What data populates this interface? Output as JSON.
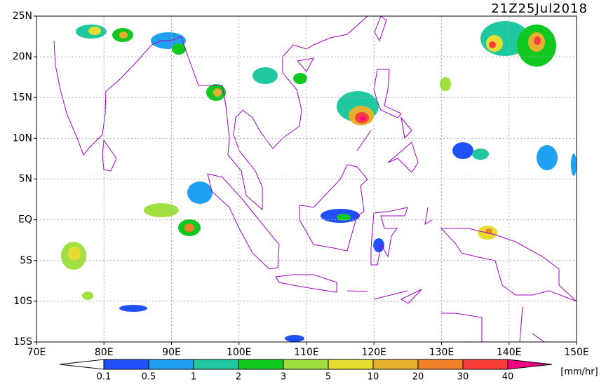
{
  "title": "21Z25Jul2018",
  "map": {
    "lonlim": [
      70,
      150
    ],
    "latlim": [
      -15,
      25
    ],
    "lonticks": [
      {
        "value": 70,
        "label": "70E"
      },
      {
        "value": 80,
        "label": "80E"
      },
      {
        "value": 90,
        "label": "90E"
      },
      {
        "value": 100,
        "label": "100E"
      },
      {
        "value": 110,
        "label": "110E"
      },
      {
        "value": 120,
        "label": "120E"
      },
      {
        "value": 130,
        "label": "130E"
      },
      {
        "value": 140,
        "label": "140E"
      },
      {
        "value": 150,
        "label": "150E"
      }
    ],
    "latticks": [
      {
        "value": 25,
        "label": "25N"
      },
      {
        "value": 20,
        "label": "20N"
      },
      {
        "value": 15,
        "label": "15N"
      },
      {
        "value": 10,
        "label": "10N"
      },
      {
        "value": 5,
        "label": "5N"
      },
      {
        "value": 0,
        "label": "EQ"
      },
      {
        "value": -5,
        "label": "5S"
      },
      {
        "value": -10,
        "label": "10S"
      },
      {
        "value": -15,
        "label": "15S"
      }
    ],
    "grid": true
  },
  "colorbar": {
    "unit": "[mm/hr]",
    "levels": [
      0.1,
      0.5,
      1,
      2,
      3,
      5,
      10,
      20,
      30,
      40
    ],
    "colors": [
      "#ffffff",
      "#2050f8",
      "#20a0f0",
      "#20c8a0",
      "#10c820",
      "#a0e040",
      "#e6dc32",
      "#e6af2d",
      "#f08228",
      "#fa3c3c",
      "#f00082"
    ]
  }
}
